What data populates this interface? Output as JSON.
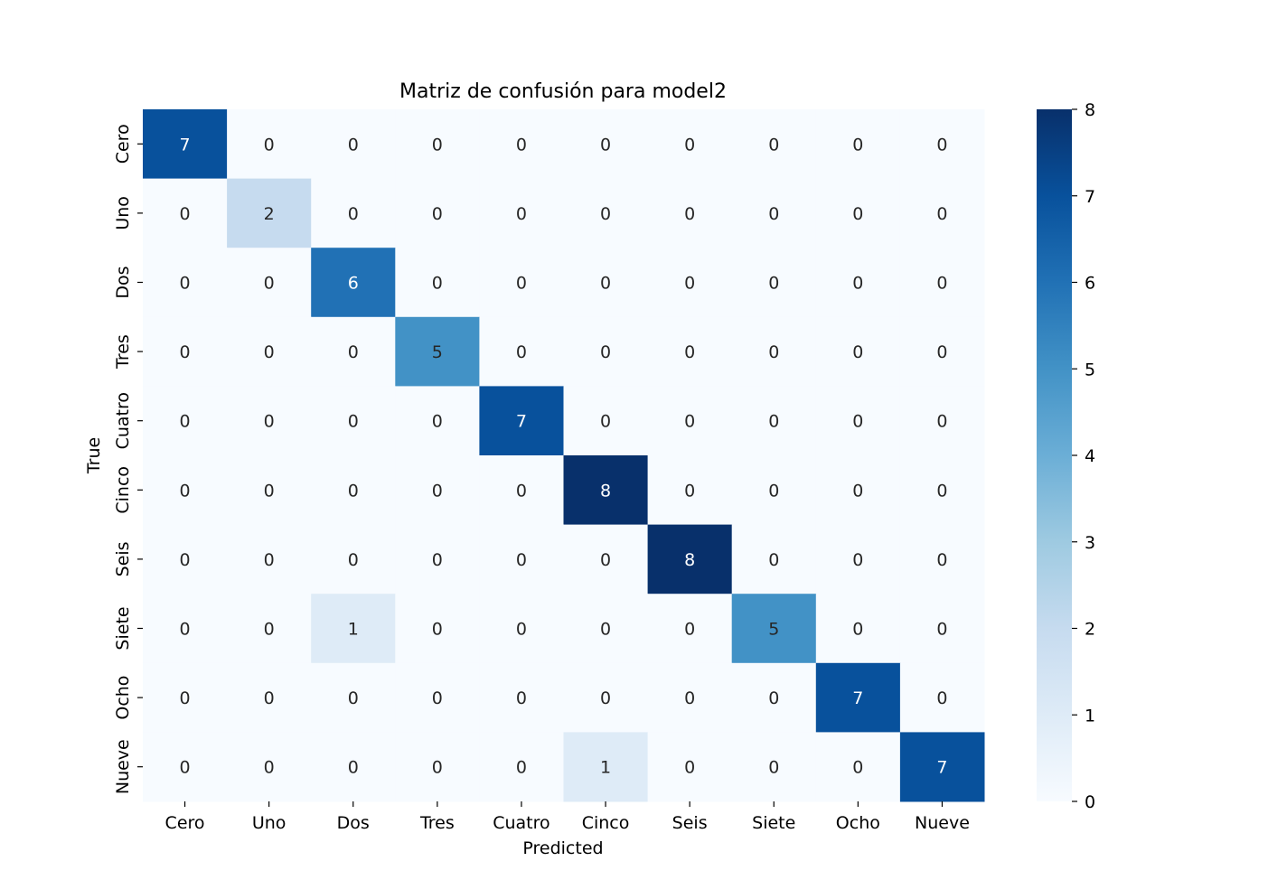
{
  "chart_data": {
    "type": "heatmap",
    "title": "Matriz de confusión para model2",
    "xlabel": "Predicted",
    "ylabel": "True",
    "x_categories": [
      "Cero",
      "Uno",
      "Dos",
      "Tres",
      "Cuatro",
      "Cinco",
      "Seis",
      "Siete",
      "Ocho",
      "Nueve"
    ],
    "y_categories": [
      "Cero",
      "Uno",
      "Dos",
      "Tres",
      "Cuatro",
      "Cinco",
      "Seis",
      "Siete",
      "Ocho",
      "Nueve"
    ],
    "values": [
      [
        7,
        0,
        0,
        0,
        0,
        0,
        0,
        0,
        0,
        0
      ],
      [
        0,
        2,
        0,
        0,
        0,
        0,
        0,
        0,
        0,
        0
      ],
      [
        0,
        0,
        6,
        0,
        0,
        0,
        0,
        0,
        0,
        0
      ],
      [
        0,
        0,
        0,
        5,
        0,
        0,
        0,
        0,
        0,
        0
      ],
      [
        0,
        0,
        0,
        0,
        7,
        0,
        0,
        0,
        0,
        0
      ],
      [
        0,
        0,
        0,
        0,
        0,
        8,
        0,
        0,
        0,
        0
      ],
      [
        0,
        0,
        0,
        0,
        0,
        0,
        8,
        0,
        0,
        0
      ],
      [
        0,
        0,
        1,
        0,
        0,
        0,
        0,
        5,
        0,
        0
      ],
      [
        0,
        0,
        0,
        0,
        0,
        0,
        0,
        0,
        7,
        0
      ],
      [
        0,
        0,
        0,
        0,
        0,
        1,
        0,
        0,
        0,
        7
      ]
    ],
    "colormap": "Blues",
    "color_range": [
      0,
      8
    ],
    "colorbar_ticks": [
      0,
      1,
      2,
      3,
      4,
      5,
      6,
      7,
      8
    ],
    "annotations": true
  }
}
